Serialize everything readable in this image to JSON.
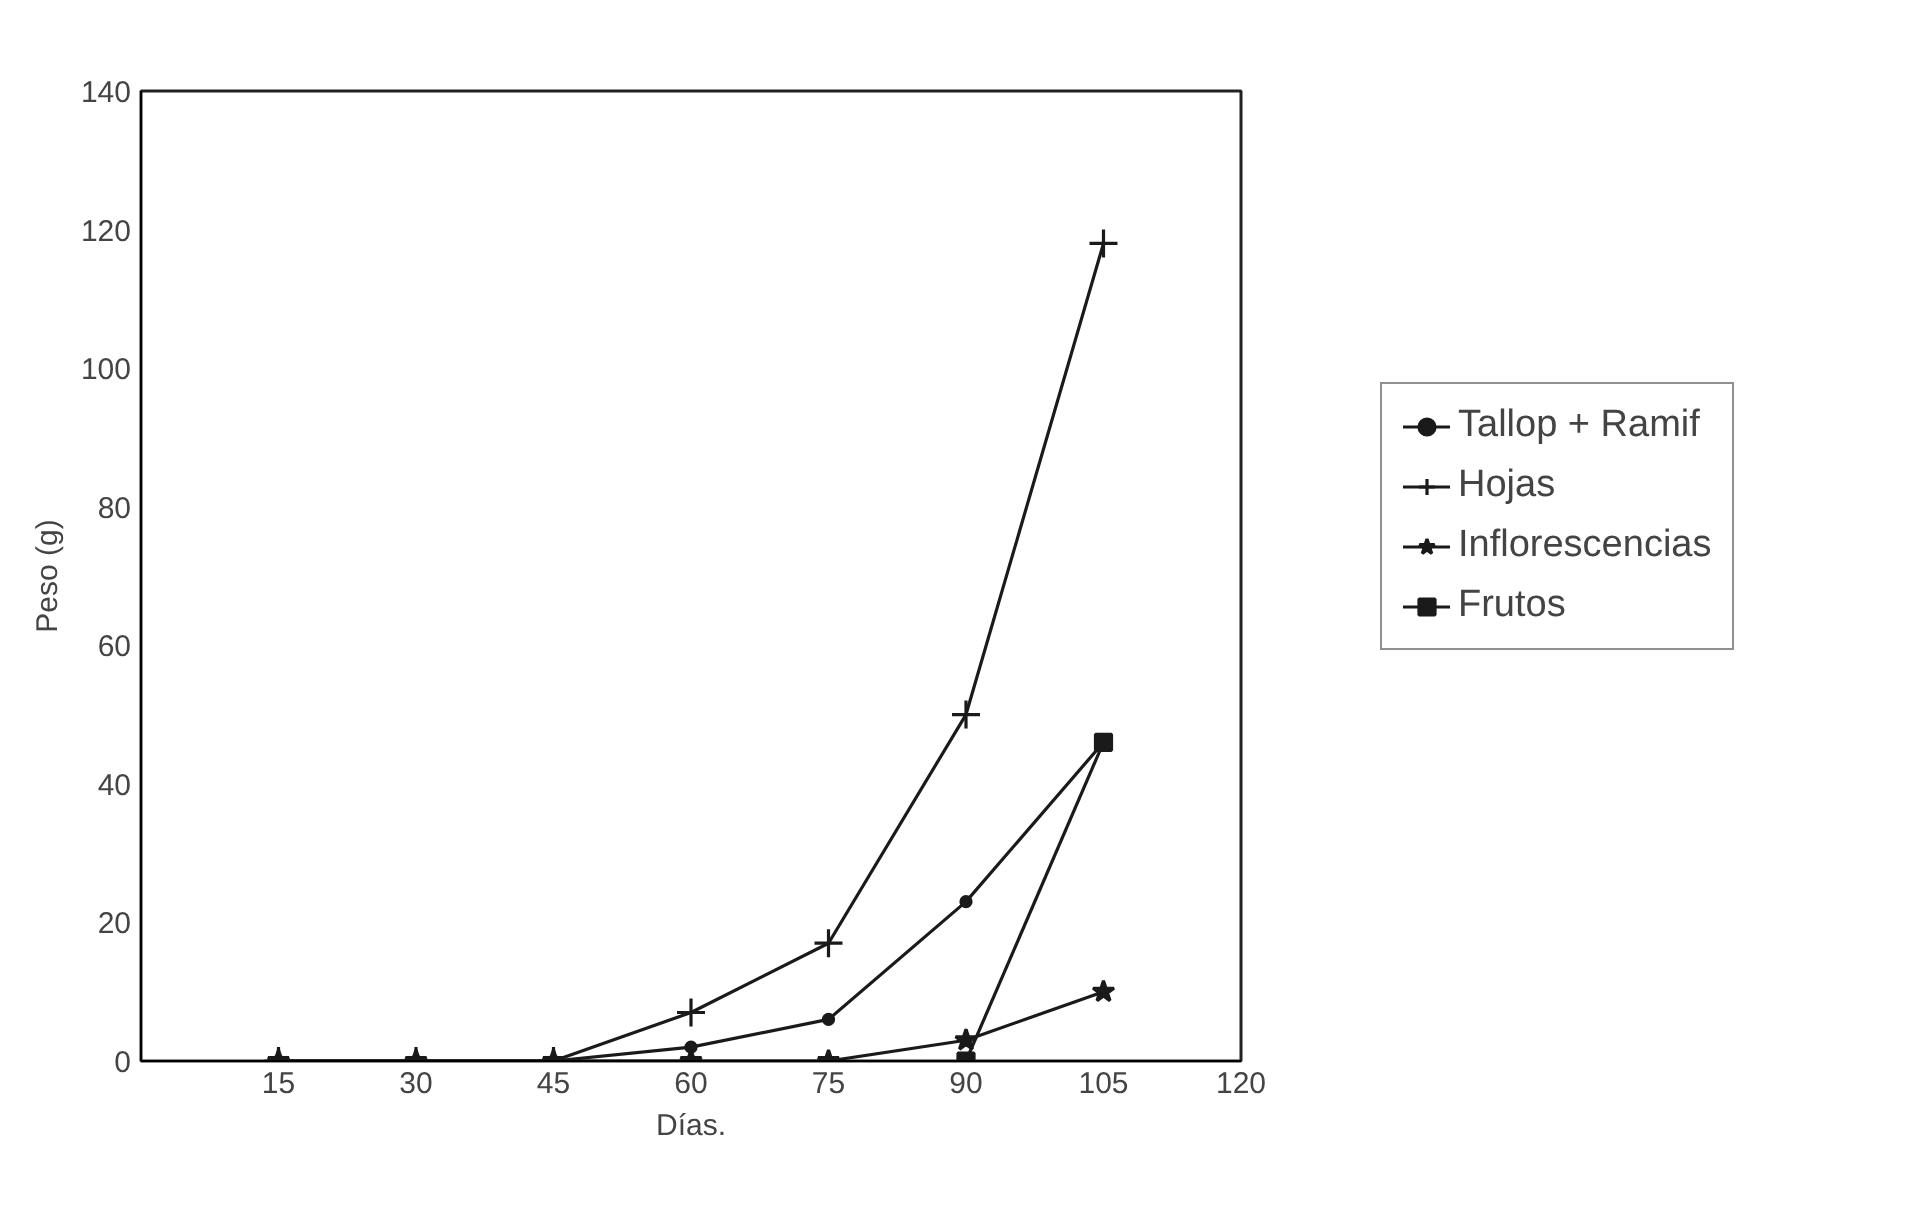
{
  "chart_data": {
    "type": "line",
    "xlabel": "Días.",
    "ylabel": "Peso (g)",
    "xlim": [
      0,
      120
    ],
    "ylim": [
      0,
      140
    ],
    "xticks": [
      15,
      30,
      45,
      60,
      75,
      90,
      105,
      120
    ],
    "yticks": [
      0,
      20,
      40,
      60,
      80,
      100,
      120,
      140
    ],
    "grid": false,
    "legend": "right",
    "x": [
      15,
      30,
      45,
      60,
      75,
      90,
      105
    ],
    "series": [
      {
        "name": "Tallop + Ramif",
        "color": "#1a1a1a",
        "marker": "circle",
        "values": [
          0,
          0,
          0,
          2,
          6,
          23,
          46
        ]
      },
      {
        "name": "Hojas",
        "color": "#1a1a1a",
        "marker": "cross",
        "values": [
          0,
          0,
          0,
          7,
          17,
          50,
          118
        ]
      },
      {
        "name": "Inflorescencias",
        "color": "#1a1a1a",
        "marker": "star",
        "values": [
          0,
          0,
          0,
          0,
          0,
          3,
          10
        ]
      },
      {
        "name": "Frutos",
        "color": "#1a1a1a",
        "marker": "square",
        "values": [
          null,
          null,
          null,
          null,
          null,
          0,
          46
        ]
      }
    ]
  }
}
